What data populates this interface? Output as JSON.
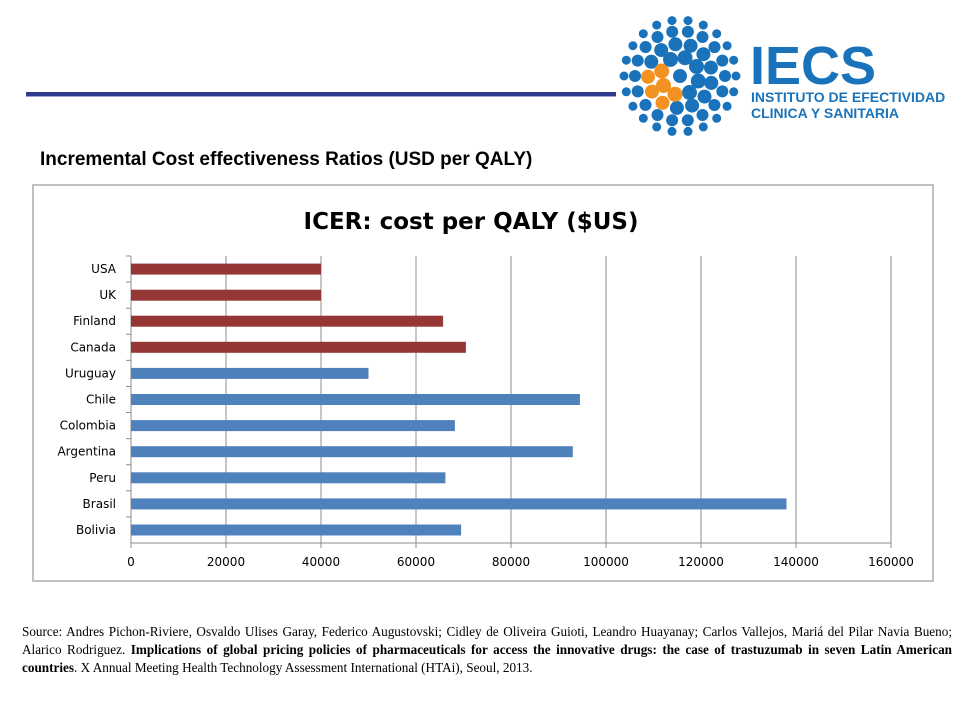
{
  "logo": {
    "name": "IECS",
    "line1": "INSTITUTO DE EFECTIVIDAD",
    "line2": "CLINICA Y SANITARIA"
  },
  "slide_title": "Incremental Cost effectiveness Ratios (USD per QALY)",
  "chart_data": {
    "type": "bar",
    "orientation": "horizontal",
    "title": "ICER: cost per QALY ($US)",
    "categories": [
      "USA",
      "UK",
      "Finland",
      "Canada",
      "Uruguay",
      "Chile",
      "Colombia",
      "Argentina",
      "Peru",
      "Brasil",
      "Bolivia"
    ],
    "values": [
      40000,
      40000,
      65700,
      70500,
      50000,
      94500,
      68200,
      93000,
      66200,
      138000,
      69500
    ],
    "bar_colors": [
      "#953735",
      "#953735",
      "#953735",
      "#953735",
      "#4f81bd",
      "#4f81bd",
      "#4f81bd",
      "#4f81bd",
      "#4f81bd",
      "#4f81bd",
      "#4f81bd"
    ],
    "xlim": [
      0,
      160000
    ],
    "x_ticks": [
      "0",
      "20000",
      "40000",
      "60000",
      "80000",
      "100000",
      "120000",
      "140000",
      "160000"
    ],
    "grid": "vertical",
    "xlabel": "",
    "ylabel": ""
  },
  "source": {
    "prefix": "Source: Andres Pichon-Riviere, Osvaldo Ulises Garay, Federico Augustovski; Cidley de Oliveira Guioti, Leandro Huayanay; Carlos Vallejos, Mariá del Pilar Navia Bueno; Alarico Rodriguez.",
    "bold": "Implications of global pricing policies of pharmaceuticals for access the innovative drugs: the case of trastuzumab in seven Latin American countries",
    "suffix": ". X Annual Meeting Health Technology Assessment International (HTAi), Seoul, 2013."
  }
}
